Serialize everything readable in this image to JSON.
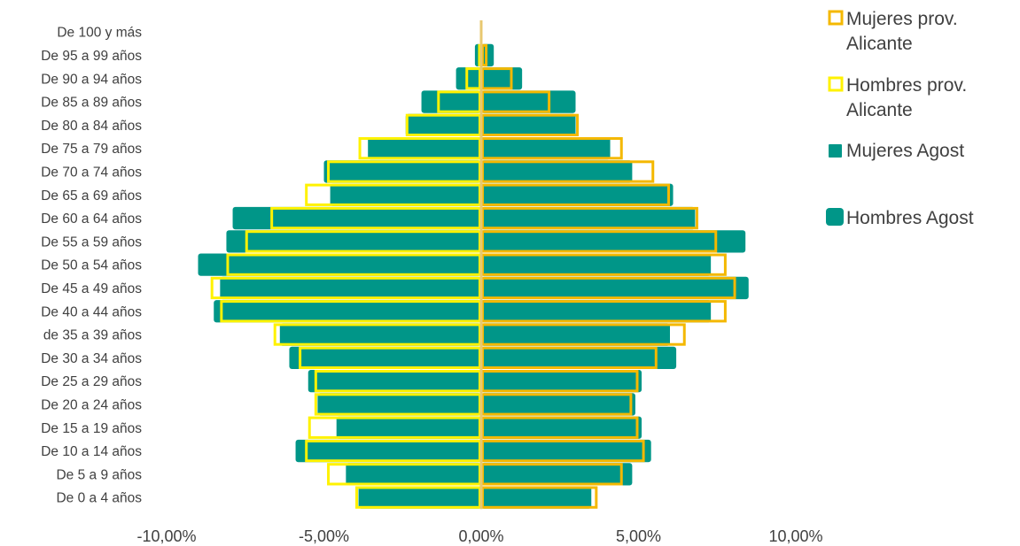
{
  "chart_data": {
    "type": "bar",
    "orientation": "horizontal",
    "categories": [
      "De 0 a 4 años",
      "De 5 a 9 años",
      "De 10 a 14 años",
      "De 15 a 19 años",
      "De 20 a 24 años",
      "De 25 a 29 años",
      "De 30 a 34 años ",
      "de 35 a 39 años",
      "De 40 a 44 años",
      "De 45 a 49 años",
      "De 50 a 54 años",
      "De 55 a 59 años",
      "De 60 a 64 años",
      "De 65 a 69 años",
      "De 70 a 74 años",
      "De 75 a 79 años",
      "De 80 a 84 años",
      "De 85 a 89 años",
      "De 90 a 94 años",
      "De 95 a 99 años",
      "De 100 y más"
    ],
    "series": [
      {
        "name": "Hombres Agost",
        "style": "filled",
        "color": "#009688",
        "values": [
          -3.9,
          -4.3,
          -5.9,
          -4.6,
          -5.2,
          -5.5,
          -6.1,
          -6.4,
          -8.5,
          -8.3,
          -9.0,
          -8.1,
          -7.9,
          -4.8,
          -5.0,
          -3.6,
          -2.4,
          -1.9,
          -0.8,
          -0.2,
          0.0
        ]
      },
      {
        "name": "Mujeres Agost",
        "style": "filled",
        "color": "#009688",
        "values": [
          3.5,
          4.8,
          5.4,
          5.1,
          4.9,
          5.1,
          6.2,
          6.0,
          7.3,
          8.5,
          7.3,
          8.4,
          6.8,
          6.1,
          4.8,
          4.1,
          3.0,
          3.0,
          1.3,
          0.4,
          0.0
        ]
      },
      {
        "name": "Hombres prov. Alicante",
        "style": "outline",
        "color": "#FFF200",
        "values": [
          -4.0,
          -4.9,
          -5.6,
          -5.5,
          -5.3,
          -5.3,
          -5.8,
          -6.6,
          -8.3,
          -8.6,
          -8.1,
          -7.5,
          -6.7,
          -5.6,
          -4.9,
          -3.9,
          -2.4,
          -1.4,
          -0.5,
          -0.1,
          0.0
        ]
      },
      {
        "name": "Mujeres prov. Alicante",
        "style": "outline",
        "color": "#F4B800",
        "values": [
          3.7,
          4.5,
          5.2,
          5.0,
          4.8,
          5.0,
          5.6,
          6.5,
          7.8,
          8.1,
          7.8,
          7.5,
          6.9,
          6.0,
          5.5,
          4.5,
          3.1,
          2.2,
          1.0,
          0.2,
          0.0
        ]
      }
    ],
    "x_ticks": [
      "-10,00%",
      "-5,00%",
      "0,00%",
      "5,00%",
      "10,00%"
    ],
    "xlim": [
      -10,
      10
    ],
    "x_unit": "%",
    "grid": false,
    "legend": {
      "position": "right",
      "entries": [
        {
          "lines": [
            "Mujeres prov.",
            "Alicante"
          ],
          "color": "#F4B800",
          "style": "outline"
        },
        {
          "lines": [
            "Hombres prov.",
            "Alicante"
          ],
          "color": "#FFF200",
          "style": "outline"
        },
        {
          "lines": [
            "Mujeres Agost"
          ],
          "color": "#009688",
          "style": "filled"
        },
        {
          "lines": [
            "Hombres Agost"
          ],
          "color": "#009688",
          "style": "filled"
        }
      ]
    },
    "zero_line_color": "#E8C870"
  }
}
